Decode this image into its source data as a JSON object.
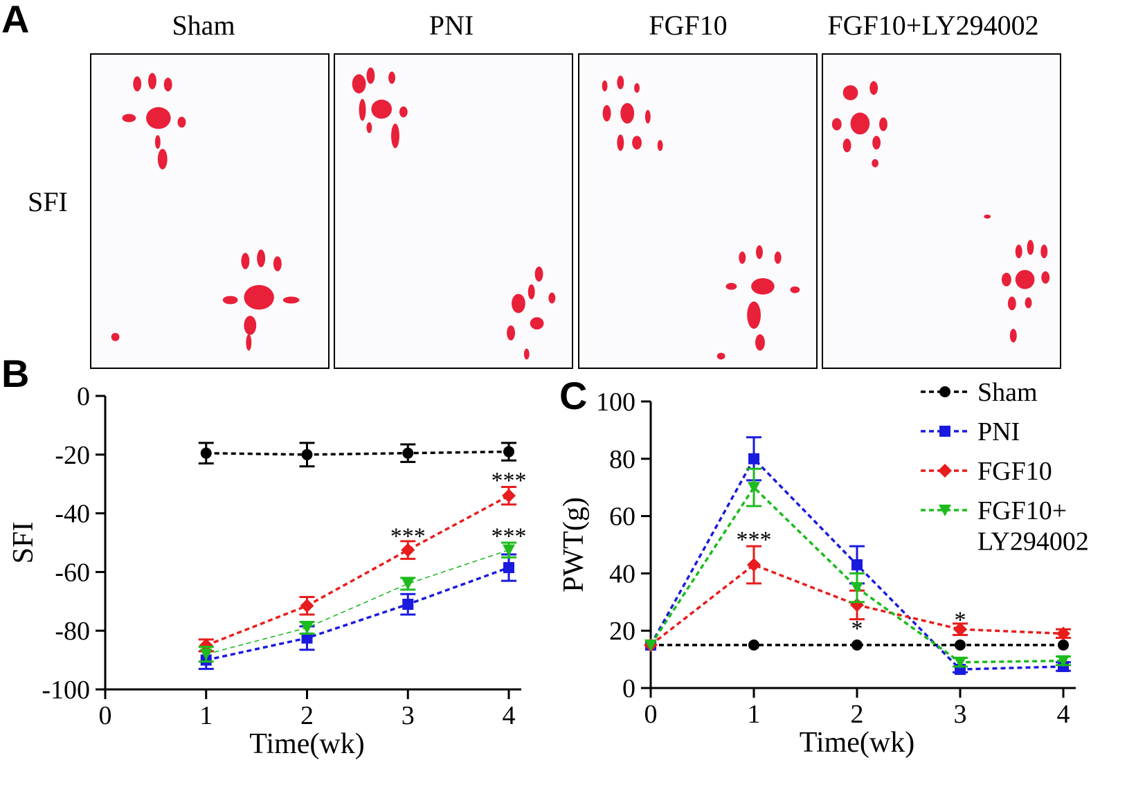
{
  "panels": {
    "a": "A",
    "b": "B",
    "c": "C"
  },
  "panel_a": {
    "row_label": "SFI",
    "groups": [
      "Sham",
      "PNI",
      "FGF10",
      "FGF10+LY294002"
    ],
    "print_color": "#e8203a"
  },
  "colors": {
    "Sham": "#000000",
    "PNI": "#1a1adf",
    "FGF10": "#e81c1c",
    "FGF10+LY294002": "#1dbb1d"
  },
  "chart_data": [
    {
      "type": "line",
      "panel": "B",
      "title": "",
      "xlabel": "Time(wk)",
      "ylabel": "SFI",
      "xlim": [
        0,
        4
      ],
      "ylim": [
        -100,
        0
      ],
      "xticks": [
        0,
        1,
        2,
        3,
        4
      ],
      "yticks": [
        0,
        -20,
        -40,
        -60,
        -80,
        -100
      ],
      "series": [
        {
          "name": "Sham",
          "marker": "circle",
          "x": [
            1,
            2,
            3,
            4
          ],
          "values": [
            -19.5,
            -20,
            -19.5,
            -19
          ],
          "errors": [
            3.5,
            4,
            3,
            3
          ]
        },
        {
          "name": "PNI",
          "marker": "square",
          "x": [
            1,
            2,
            3,
            4
          ],
          "values": [
            -90,
            -82.5,
            -71,
            -58.5
          ],
          "errors": [
            3,
            4,
            3.5,
            4.5
          ]
        },
        {
          "name": "FGF10",
          "marker": "diamond",
          "x": [
            1,
            2,
            3,
            4
          ],
          "values": [
            -85,
            -71.5,
            -52.5,
            -34
          ],
          "errors": [
            2,
            3,
            3,
            3
          ]
        },
        {
          "name": "FGF10+LY294002",
          "marker": "triangle-down",
          "x": [
            1,
            2,
            3,
            4
          ],
          "values": [
            -88,
            -79,
            -64,
            -52.5
          ],
          "errors": [
            2.5,
            2,
            2,
            2.5
          ]
        }
      ],
      "annotations": [
        {
          "x": 3,
          "y": -47.5,
          "text": "***"
        },
        {
          "x": 4,
          "y": -28.5,
          "text": "***"
        },
        {
          "x": 4,
          "y": -47.5,
          "text": "***"
        }
      ]
    },
    {
      "type": "line",
      "panel": "C",
      "title": "",
      "xlabel": "Time(wk)",
      "ylabel": "PWT(g)",
      "xlim": [
        0,
        4
      ],
      "ylim": [
        0,
        100
      ],
      "xticks": [
        0,
        1,
        2,
        3,
        4
      ],
      "yticks": [
        0,
        20,
        40,
        60,
        80,
        100
      ],
      "legend": {
        "position": "top-right",
        "entries": [
          "Sham",
          "PNI",
          "FGF10",
          "FGF10+",
          "LY294002"
        ]
      },
      "series": [
        {
          "name": "Sham",
          "marker": "circle",
          "x": [
            0,
            1,
            2,
            3,
            4
          ],
          "values": [
            15,
            15,
            15,
            15,
            15
          ],
          "errors": [
            0,
            0,
            0,
            0,
            0
          ]
        },
        {
          "name": "PNI",
          "marker": "square",
          "x": [
            0,
            1,
            2,
            3,
            4
          ],
          "values": [
            15,
            80,
            43,
            6.5,
            7.5
          ],
          "errors": [
            0,
            7.5,
            6.5,
            1,
            1.5
          ]
        },
        {
          "name": "FGF10",
          "marker": "diamond",
          "x": [
            0,
            1,
            2,
            3,
            4
          ],
          "values": [
            15,
            43,
            29,
            20.5,
            19
          ],
          "errors": [
            0,
            6.5,
            5,
            2,
            1.5
          ]
        },
        {
          "name": "FGF10+LY294002",
          "marker": "triangle-down",
          "x": [
            0,
            1,
            2,
            3,
            4
          ],
          "values": [
            15,
            70,
            35,
            9,
            9.5
          ],
          "errors": [
            0,
            6.5,
            5,
            1.5,
            1.5
          ]
        }
      ],
      "annotations": [
        {
          "x": 1,
          "y": 52,
          "text": "***"
        },
        {
          "x": 2,
          "y": 21,
          "text": "*"
        },
        {
          "x": 3,
          "y": 24,
          "text": "*"
        }
      ]
    }
  ]
}
